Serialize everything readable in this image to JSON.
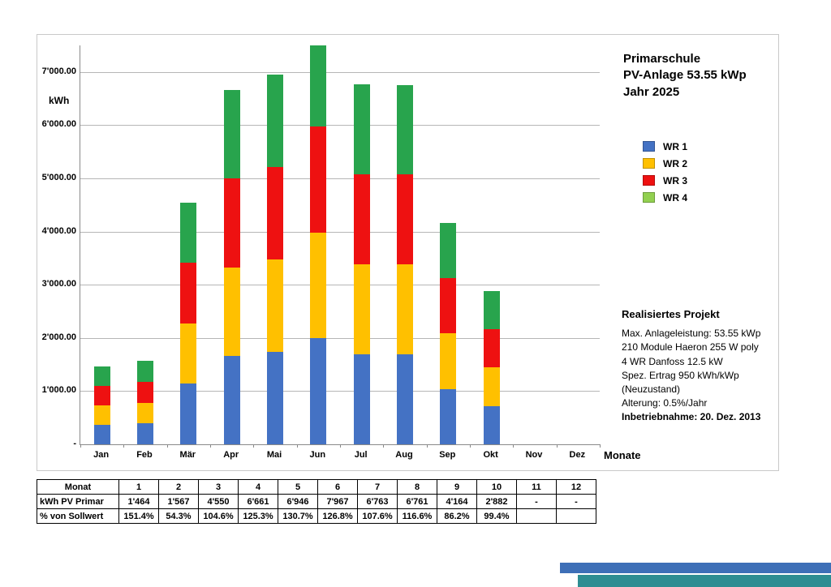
{
  "chart": {
    "title_lines": [
      "Primarschule",
      "PV-Anlage 53.55 kWp",
      "Jahr 2025"
    ],
    "y_axis_unit": "kWh",
    "x_axis_title": "Monate",
    "y_ticks": [
      {
        "value": 7000,
        "label": "7'000.00"
      },
      {
        "value": 6000,
        "label": "6'000.00"
      },
      {
        "value": 5000,
        "label": "5'000.00"
      },
      {
        "value": 4000,
        "label": "4'000.00"
      },
      {
        "value": 3000,
        "label": "3'000.00"
      },
      {
        "value": 2000,
        "label": "2'000.00"
      },
      {
        "value": 1000,
        "label": "1'000.00"
      },
      {
        "value": 0,
        "label": "-"
      }
    ]
  },
  "chart_data": {
    "type": "bar",
    "stacked": true,
    "title": "Primarschule PV-Anlage 53.55 kWp Jahr 2025",
    "xlabel": "Monate",
    "ylabel": "kWh",
    "ylim": [
      0,
      7500
    ],
    "grid": true,
    "legend_position": "right",
    "categories": [
      "Jan",
      "Feb",
      "Mär",
      "Apr",
      "Mai",
      "Jun",
      "Jul",
      "Aug",
      "Sep",
      "Okt",
      "Nov",
      "Dez"
    ],
    "series": [
      {
        "name": "WR 1",
        "color": "#4472c4",
        "values": [
          366,
          392,
          1138,
          1665,
          1737,
          1992,
          1691,
          1690,
          1041,
          721,
          null,
          null
        ]
      },
      {
        "name": "WR 2",
        "color": "#ffc000",
        "values": [
          366,
          392,
          1138,
          1665,
          1737,
          1992,
          1691,
          1690,
          1041,
          721,
          null,
          null
        ]
      },
      {
        "name": "WR 3",
        "color": "#ee1111",
        "values": [
          366,
          392,
          1137,
          1665,
          1736,
          1992,
          1690,
          1690,
          1041,
          720,
          null,
          null
        ]
      },
      {
        "name": "WR 4",
        "color": "#28a44d",
        "legend_color": "#92d050",
        "values": [
          366,
          391,
          1137,
          1666,
          1736,
          1991,
          1691,
          1691,
          1041,
          720,
          null,
          null
        ]
      }
    ],
    "totals": [
      1464,
      1567,
      4550,
      6661,
      6946,
      7967,
      6763,
      6761,
      4164,
      2882,
      null,
      null
    ]
  },
  "info": {
    "heading": "Realisiertes Projekt",
    "lines": [
      "Max. Anlageleistung: 53.55 kWp",
      "210 Module Haeron 255 W poly",
      "4 WR Danfoss 12.5 kW",
      "Spez. Ertrag 950 kWh/kWp",
      "(Neuzustand)",
      "Alterung: 0.5%/Jahr"
    ],
    "bold_line": "Inbetriebnahme: 20. Dez. 2013"
  },
  "table": {
    "rows": [
      [
        "Monat",
        "1",
        "2",
        "3",
        "4",
        "5",
        "6",
        "7",
        "8",
        "9",
        "10",
        "11",
        "12"
      ],
      [
        "kWh PV Primar",
        "1'464",
        "1'567",
        "4'550",
        "6'661",
        "6'946",
        "7'967",
        "6'763",
        "6'761",
        "4'164",
        "2'882",
        "-",
        "-"
      ],
      [
        "% von Sollwert",
        "151.4%",
        "54.3%",
        "104.6%",
        "125.3%",
        "130.7%",
        "126.8%",
        "107.6%",
        "116.6%",
        "86.2%",
        "99.4%",
        "",
        ""
      ]
    ]
  },
  "footer": {
    "stripe_blue_color": "#3e6fb7",
    "stripe_teal_color": "#2e8d92"
  }
}
